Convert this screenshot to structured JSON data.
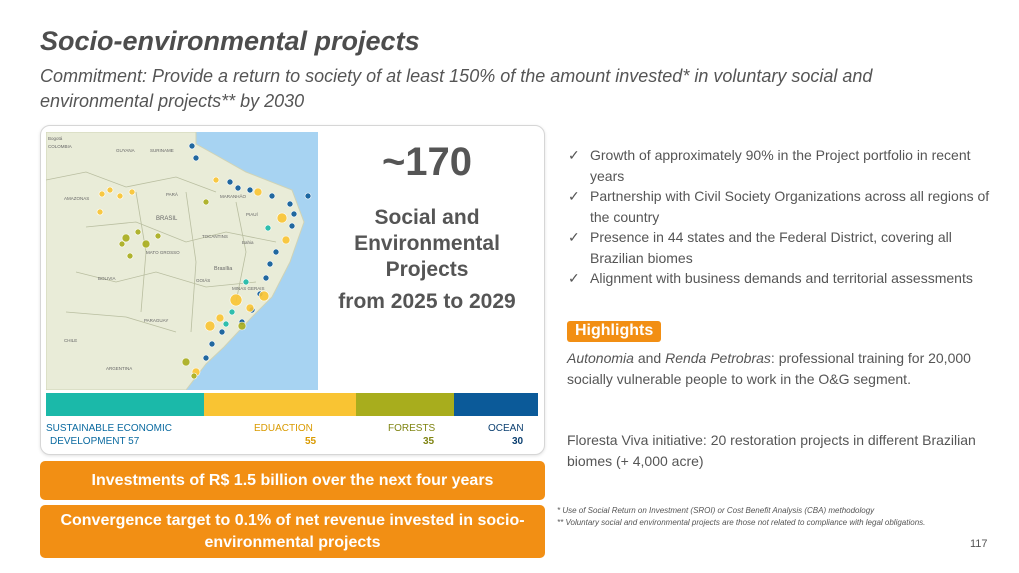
{
  "header": {
    "title": "Socio-environmental projects",
    "subtitle": "Commitment: Provide a return to society of at least 150% of the amount invested* in voluntary social and environmental projects** by 2030"
  },
  "summary": {
    "count": "~170",
    "label": "Social and Environmental Projects",
    "period": "from 2025 to 2029"
  },
  "map": {
    "labels": [
      "Bogotá",
      "COLOMBIA",
      "SURINAME",
      "GUYANA",
      "AMAZONAS",
      "PARÁ",
      "MARANHÃO",
      "BRASIL",
      "PIAUÍ",
      "TOCANTINS",
      "Bahia",
      "MATO GROSSO",
      "BOLIVIA",
      "Brasília",
      "GOIÁS",
      "MINAS GERAIS",
      "PARAGUAY",
      "CHILE",
      "ARGENTINA"
    ]
  },
  "categories": [
    {
      "name_line1": "SUSTAINABLE ECONOMIC",
      "name_line2": "DEVELOPMENT 57",
      "count": "",
      "color": "#1bb9a9"
    },
    {
      "name_line1": "EDUACTION",
      "name_line2": "",
      "count": "55",
      "color": "#f9c433"
    },
    {
      "name_line1": "FORESTS",
      "name_line2": "",
      "count": "35",
      "color": "#a8ad1d"
    },
    {
      "name_line1": "OCEAN",
      "name_line2": "",
      "count": "30",
      "color": "#0b5a99"
    }
  ],
  "callouts": [
    "Investments of R$ 1.5 billion over the next four years",
    "Convergence target to 0.1% of net revenue invested in socio-environmental projects"
  ],
  "bullets": [
    "Growth of approximately 90% in the Project portfolio in recent years",
    "Partnership with Civil Society Organizations across all regions of the country",
    "Presence in 44 states and the Federal District, covering all Brazilian biomes",
    "Alignment with business demands and territorial assessments"
  ],
  "highlights": {
    "badge": "Highlights",
    "item1_em1": "Autonomia",
    "item1_and": " and ",
    "item1_em2": "Renda Petrobras",
    "item1_rest": ": professional training for 20,000 socially vulnerable people to work in the O&G segment.",
    "item2": "Floresta Viva initiative: 20 restoration projects in different Brazilian biomes (+ 4,000 acre)"
  },
  "footnotes": [
    "* Use of Social Return on Investment (SROI) or Cost Benefit Analysis (CBA) methodology",
    "** Voluntary social and environmental projects are those not related to compliance with legal obligations."
  ],
  "page_number": "117",
  "colors": {
    "accent": "#f28f14",
    "check": "#555555",
    "sea": "#a7d3f2",
    "land": "#e9ecd8"
  }
}
